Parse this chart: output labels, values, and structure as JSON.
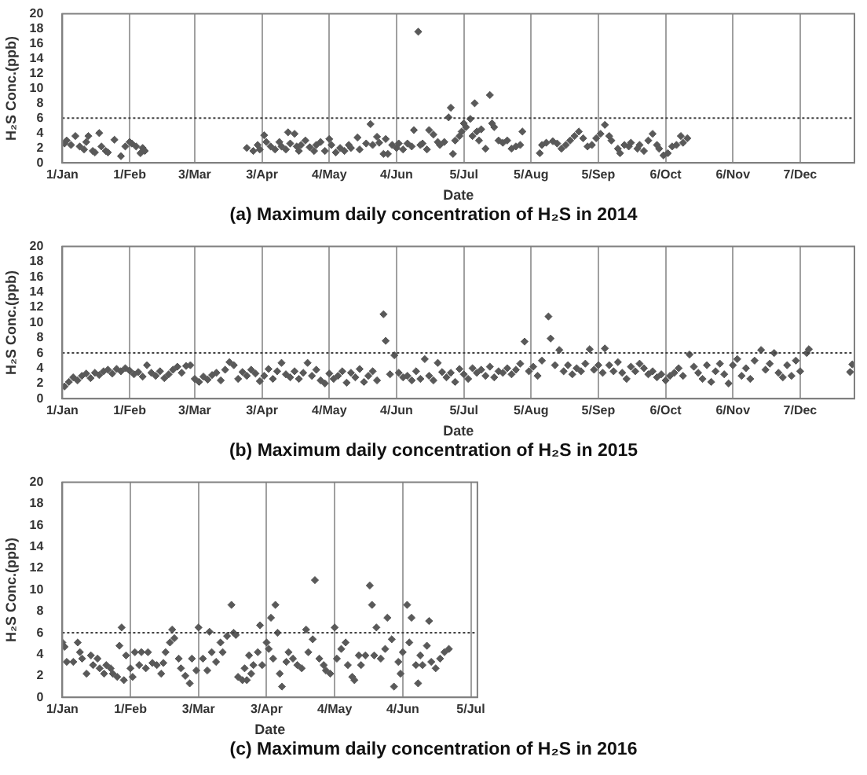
{
  "chart_data": [
    {
      "type": "scatter",
      "title": "(a) Maximum daily concentration of H₂S in 2014",
      "xlabel": "Date",
      "ylabel": "H₂S Conc.(ppb)",
      "color": "#595959",
      "marker": "diamond",
      "grid": "x",
      "xlim": [
        "2014-01-01",
        "2015-01-01"
      ],
      "xticks": [
        {
          "value": "2014-01-01",
          "label": "1/Jan"
        },
        {
          "value": "2014-02-01",
          "label": "1/Feb"
        },
        {
          "value": "2014-03-03",
          "label": "3/Mar"
        },
        {
          "value": "2014-04-03",
          "label": "3/Apr"
        },
        {
          "value": "2014-05-04",
          "label": "4/May"
        },
        {
          "value": "2014-06-04",
          "label": "4/Jun"
        },
        {
          "value": "2014-07-05",
          "label": "5/Jul"
        },
        {
          "value": "2014-08-05",
          "label": "5/Aug"
        },
        {
          "value": "2014-09-05",
          "label": "5/Sep"
        },
        {
          "value": "2014-10-06",
          "label": "6/Oct"
        },
        {
          "value": "2014-11-06",
          "label": "6/Nov"
        },
        {
          "value": "2014-12-07",
          "label": "7/Dec"
        }
      ],
      "ylim": [
        0,
        20
      ],
      "yticks": [
        0,
        2,
        4,
        6,
        8,
        10,
        12,
        14,
        16,
        18,
        20
      ],
      "ref_lines": [
        {
          "axis": "y",
          "value": 6,
          "line_style": "dotted",
          "color": "#404040"
        }
      ],
      "x": [
        "2014-01-02",
        "2014-01-03",
        "2014-01-05",
        "2014-01-07",
        "2014-01-09",
        "2014-01-11",
        "2014-01-12",
        "2014-01-13",
        "2014-01-15",
        "2014-01-16",
        "2014-01-18",
        "2014-01-19",
        "2014-01-21",
        "2014-01-22",
        "2014-01-25",
        "2014-01-28",
        "2014-01-30",
        "2014-02-01",
        "2014-02-02",
        "2014-02-04",
        "2014-02-06",
        "2014-02-07",
        "2014-02-08",
        "2014-03-27",
        "2014-03-30",
        "2014-04-01",
        "2014-04-02",
        "2014-04-04",
        "2014-04-05",
        "2014-04-07",
        "2014-04-09",
        "2014-04-11",
        "2014-04-12",
        "2014-04-14",
        "2014-04-15",
        "2014-04-16",
        "2014-04-18",
        "2014-04-19",
        "2014-04-20",
        "2014-04-21",
        "2014-04-23",
        "2014-04-25",
        "2014-04-27",
        "2014-04-28",
        "2014-04-30",
        "2014-05-02",
        "2014-05-04",
        "2014-05-05",
        "2014-05-07",
        "2014-05-09",
        "2014-05-11",
        "2014-05-13",
        "2014-05-14",
        "2014-05-17",
        "2014-05-18",
        "2014-05-21",
        "2014-05-23",
        "2014-05-24",
        "2014-05-26",
        "2014-05-27",
        "2014-05-29",
        "2014-05-30",
        "2014-05-31",
        "2014-06-02",
        "2014-06-04",
        "2014-06-05",
        "2014-06-07",
        "2014-06-09",
        "2014-06-11",
        "2014-06-12",
        "2014-06-14",
        "2014-06-15",
        "2014-06-16",
        "2014-06-18",
        "2014-06-19",
        "2014-06-21",
        "2014-06-23",
        "2014-06-24",
        "2014-06-26",
        "2014-06-28",
        "2014-06-29",
        "2014-06-30",
        "2014-07-01",
        "2014-07-03",
        "2014-07-04",
        "2014-07-05",
        "2014-07-06",
        "2014-07-08",
        "2014-07-09",
        "2014-07-10",
        "2014-07-11",
        "2014-07-12",
        "2014-07-13",
        "2014-07-15",
        "2014-07-17",
        "2014-07-18",
        "2014-07-19",
        "2014-07-21",
        "2014-07-23",
        "2014-07-25",
        "2014-07-27",
        "2014-07-29",
        "2014-07-31",
        "2014-08-01",
        "2014-08-09",
        "2014-08-10",
        "2014-08-12",
        "2014-08-15",
        "2014-08-17",
        "2014-08-19",
        "2014-08-21",
        "2014-08-23",
        "2014-08-25",
        "2014-08-27",
        "2014-08-29",
        "2014-08-31",
        "2014-09-02",
        "2014-09-04",
        "2014-09-06",
        "2014-09-08",
        "2014-09-10",
        "2014-09-11",
        "2014-09-14",
        "2014-09-15",
        "2014-09-17",
        "2014-09-19",
        "2014-09-20",
        "2014-09-23",
        "2014-09-24",
        "2014-09-26",
        "2014-09-28",
        "2014-09-30",
        "2014-10-02",
        "2014-10-03",
        "2014-10-05",
        "2014-10-07",
        "2014-10-09",
        "2014-10-11",
        "2014-10-13",
        "2014-10-14",
        "2014-10-16"
      ],
      "values": [
        2.6,
        3.0,
        2.4,
        3.6,
        2.2,
        1.8,
        2.8,
        3.6,
        1.6,
        1.4,
        4.0,
        2.2,
        1.6,
        1.4,
        3.1,
        0.9,
        2.2,
        2.8,
        2.6,
        2.2,
        1.3,
        2.0,
        1.6,
        2.0,
        1.6,
        2.4,
        1.8,
        3.7,
        2.8,
        2.2,
        1.8,
        2.8,
        2.2,
        1.8,
        4.1,
        2.6,
        3.9,
        2.2,
        1.6,
        2.4,
        3.0,
        2.1,
        1.6,
        2.4,
        2.8,
        1.6,
        3.2,
        2.4,
        1.4,
        2.0,
        1.6,
        2.4,
        2.0,
        3.4,
        1.8,
        2.6,
        5.2,
        2.4,
        3.5,
        2.7,
        1.2,
        3.2,
        1.2,
        2.4,
        2.0,
        2.6,
        1.8,
        2.6,
        2.2,
        4.4,
        17.6,
        2.4,
        2.6,
        1.8,
        4.4,
        3.8,
        2.8,
        2.4,
        2.8,
        6.1,
        7.4,
        1.2,
        3.0,
        3.6,
        4.2,
        5.3,
        4.8,
        5.9,
        3.6,
        8.0,
        4.2,
        3.0,
        4.5,
        1.9,
        9.1,
        5.3,
        4.8,
        3.0,
        2.7,
        3.0,
        1.9,
        2.2,
        2.4,
        4.2,
        1.3,
        2.4,
        2.7,
        2.9,
        2.6,
        1.9,
        2.4,
        3.0,
        3.6,
        4.2,
        3.3,
        2.2,
        2.4,
        3.3,
        3.9,
        5.1,
        3.6,
        3.0,
        1.9,
        1.3,
        2.4,
        2.2,
        2.7,
        1.9,
        2.4,
        1.6,
        3.0,
        3.9,
        2.4,
        1.9,
        1.0,
        1.3,
        2.2,
        2.4,
        3.6,
        2.7,
        3.3
      ]
    },
    {
      "type": "scatter",
      "title": "(b) Maximum daily concentration of H₂S in 2015",
      "xlabel": "Date",
      "ylabel": "H₂S Conc.(ppb)",
      "color": "#595959",
      "marker": "diamond",
      "grid": "x",
      "xlim": [
        "2015-01-01",
        "2016-01-01"
      ],
      "xticks": [
        {
          "value": "2015-01-01",
          "label": "1/Jan"
        },
        {
          "value": "2015-02-01",
          "label": "1/Feb"
        },
        {
          "value": "2015-03-03",
          "label": "3/Mar"
        },
        {
          "value": "2015-04-03",
          "label": "3/Apr"
        },
        {
          "value": "2015-05-04",
          "label": "4/May"
        },
        {
          "value": "2015-06-04",
          "label": "4/Jun"
        },
        {
          "value": "2015-07-05",
          "label": "5/Jul"
        },
        {
          "value": "2015-08-05",
          "label": "5/Aug"
        },
        {
          "value": "2015-09-05",
          "label": "5/Sep"
        },
        {
          "value": "2015-10-06",
          "label": "6/Oct"
        },
        {
          "value": "2015-11-06",
          "label": "6/Nov"
        },
        {
          "value": "2015-12-07",
          "label": "7/Dec"
        }
      ],
      "ylim": [
        0,
        20
      ],
      "yticks": [
        0,
        2,
        4,
        6,
        8,
        10,
        12,
        14,
        16,
        18,
        20
      ],
      "ref_lines": [
        {
          "axis": "y",
          "value": 6,
          "line_style": "dotted",
          "color": "#404040"
        }
      ],
      "x": [
        "2015-01-02",
        "2015-01-04",
        "2015-01-06",
        "2015-01-08",
        "2015-01-10",
        "2015-01-12",
        "2015-01-14",
        "2015-01-16",
        "2015-01-18",
        "2015-01-20",
        "2015-01-22",
        "2015-01-24",
        "2015-01-26",
        "2015-01-28",
        "2015-01-30",
        "2015-02-01",
        "2015-02-03",
        "2015-02-05",
        "2015-02-07",
        "2015-02-09",
        "2015-02-11",
        "2015-02-13",
        "2015-02-15",
        "2015-02-17",
        "2015-02-19",
        "2015-02-21",
        "2015-02-23",
        "2015-02-25",
        "2015-02-27",
        "2015-03-01",
        "2015-03-03",
        "2015-03-05",
        "2015-03-07",
        "2015-03-09",
        "2015-03-11",
        "2015-03-13",
        "2015-03-15",
        "2015-03-17",
        "2015-03-19",
        "2015-03-21",
        "2015-03-23",
        "2015-03-25",
        "2015-03-27",
        "2015-03-29",
        "2015-03-31",
        "2015-04-02",
        "2015-04-04",
        "2015-04-06",
        "2015-04-08",
        "2015-04-10",
        "2015-04-12",
        "2015-04-14",
        "2015-04-16",
        "2015-04-18",
        "2015-04-20",
        "2015-04-22",
        "2015-04-24",
        "2015-04-26",
        "2015-04-28",
        "2015-04-30",
        "2015-05-02",
        "2015-05-04",
        "2015-05-06",
        "2015-05-08",
        "2015-05-10",
        "2015-05-12",
        "2015-05-14",
        "2015-05-16",
        "2015-05-18",
        "2015-05-20",
        "2015-05-22",
        "2015-05-24",
        "2015-05-26",
        "2015-05-29",
        "2015-05-30",
        "2015-06-01",
        "2015-06-03",
        "2015-06-05",
        "2015-06-07",
        "2015-06-09",
        "2015-06-11",
        "2015-06-13",
        "2015-06-15",
        "2015-06-17",
        "2015-06-19",
        "2015-06-21",
        "2015-06-23",
        "2015-06-25",
        "2015-06-27",
        "2015-06-29",
        "2015-07-01",
        "2015-07-03",
        "2015-07-05",
        "2015-07-07",
        "2015-07-09",
        "2015-07-11",
        "2015-07-13",
        "2015-07-15",
        "2015-07-17",
        "2015-07-19",
        "2015-07-21",
        "2015-07-23",
        "2015-07-25",
        "2015-07-27",
        "2015-07-29",
        "2015-07-31",
        "2015-08-02",
        "2015-08-04",
        "2015-08-06",
        "2015-08-08",
        "2015-08-10",
        "2015-08-13",
        "2015-08-14",
        "2015-08-16",
        "2015-08-18",
        "2015-08-20",
        "2015-08-22",
        "2015-08-24",
        "2015-08-26",
        "2015-08-28",
        "2015-08-30",
        "2015-09-01",
        "2015-09-03",
        "2015-09-05",
        "2015-09-07",
        "2015-09-08",
        "2015-09-10",
        "2015-09-12",
        "2015-09-14",
        "2015-09-16",
        "2015-09-18",
        "2015-09-20",
        "2015-09-22",
        "2015-09-24",
        "2015-09-26",
        "2015-09-28",
        "2015-09-30",
        "2015-10-02",
        "2015-10-04",
        "2015-10-06",
        "2015-10-08",
        "2015-10-10",
        "2015-10-12",
        "2015-10-14",
        "2015-10-17",
        "2015-10-19",
        "2015-10-21",
        "2015-10-23",
        "2015-10-25",
        "2015-10-27",
        "2015-10-29",
        "2015-10-31",
        "2015-11-02",
        "2015-11-04",
        "2015-11-06",
        "2015-11-08",
        "2015-11-10",
        "2015-11-12",
        "2015-11-14",
        "2015-11-16",
        "2015-11-19",
        "2015-11-21",
        "2015-11-23",
        "2015-11-25",
        "2015-11-27",
        "2015-11-29",
        "2015-12-01",
        "2015-12-03",
        "2015-12-05",
        "2015-12-07",
        "2015-12-10",
        "2015-12-11",
        "2015-12-30",
        "2015-12-31"
      ],
      "values": [
        1.6,
        2.2,
        2.8,
        2.4,
        3.0,
        3.3,
        2.7,
        3.4,
        3.1,
        3.6,
        3.8,
        3.3,
        3.9,
        3.6,
        4.0,
        3.7,
        3.2,
        3.5,
        2.9,
        4.4,
        3.4,
        3.0,
        3.6,
        2.7,
        3.2,
        3.8,
        4.2,
        3.4,
        4.3,
        4.4,
        2.6,
        2.2,
        2.9,
        2.5,
        3.1,
        3.4,
        2.4,
        3.8,
        4.8,
        4.4,
        2.6,
        3.5,
        3.0,
        3.8,
        3.3,
        2.3,
        3.0,
        3.9,
        2.6,
        3.6,
        4.7,
        3.2,
        2.8,
        3.6,
        2.6,
        3.4,
        4.7,
        3.0,
        3.8,
        2.4,
        2.0,
        3.3,
        2.6,
        3.0,
        3.6,
        2.1,
        3.4,
        2.8,
        3.9,
        2.2,
        3.0,
        3.6,
        2.4,
        11.1,
        7.6,
        3.2,
        5.7,
        3.4,
        2.8,
        3.0,
        2.4,
        3.6,
        2.6,
        5.2,
        3.0,
        2.4,
        4.7,
        3.5,
        2.8,
        3.4,
        2.2,
        3.9,
        3.2,
        2.6,
        4.0,
        3.4,
        3.8,
        3.0,
        4.2,
        2.8,
        3.6,
        3.4,
        4.0,
        3.2,
        3.8,
        4.6,
        7.5,
        3.6,
        4.2,
        3.0,
        5.0,
        10.8,
        7.9,
        4.4,
        6.4,
        3.6,
        4.4,
        3.2,
        4.0,
        3.6,
        4.6,
        6.5,
        3.8,
        4.4,
        3.4,
        6.6,
        4.4,
        3.6,
        4.8,
        3.4,
        2.6,
        4.2,
        3.6,
        4.6,
        4.0,
        3.2,
        3.6,
        2.8,
        3.2,
        2.4,
        3.0,
        3.4,
        4.0,
        3.0,
        5.8,
        4.2,
        3.4,
        2.6,
        4.4,
        2.2,
        3.6,
        4.6,
        3.2,
        2.0,
        4.4,
        5.2,
        3.0,
        4.0,
        2.6,
        5.0,
        6.4,
        3.8,
        4.6,
        6.0,
        3.4,
        2.8,
        4.4,
        3.0,
        5.0,
        3.6,
        6.0,
        6.5,
        3.5,
        4.5
      ]
    },
    {
      "type": "scatter",
      "title": "(c) Maximum daily concentration of H₂S in 2016",
      "xlabel": "Date",
      "ylabel": "H₂S Conc.(ppb)",
      "color": "#595959",
      "marker": "diamond",
      "grid": "x",
      "xlim": [
        "2016-01-01",
        "2016-07-08"
      ],
      "xticks": [
        {
          "value": "2016-01-01",
          "label": "1/Jan"
        },
        {
          "value": "2016-02-01",
          "label": "1/Feb"
        },
        {
          "value": "2016-03-03",
          "label": "3/Mar"
        },
        {
          "value": "2016-04-03",
          "label": "3/Apr"
        },
        {
          "value": "2016-05-04",
          "label": "4/May"
        },
        {
          "value": "2016-06-04",
          "label": "4/Jun"
        },
        {
          "value": "2016-07-05",
          "label": "5/Jul"
        }
      ],
      "ylim": [
        0,
        20
      ],
      "yticks": [
        0,
        2,
        4,
        6,
        8,
        10,
        12,
        14,
        16,
        18,
        20
      ],
      "ref_lines": [
        {
          "axis": "y",
          "value": 6,
          "line_style": "dotted",
          "color": "#404040"
        }
      ],
      "x": [
        "2016-01-01",
        "2016-01-02",
        "2016-01-03",
        "2016-01-06",
        "2016-01-08",
        "2016-01-09",
        "2016-01-10",
        "2016-01-12",
        "2016-01-14",
        "2016-01-15",
        "2016-01-17",
        "2016-01-18",
        "2016-01-20",
        "2016-01-21",
        "2016-01-23",
        "2016-01-24",
        "2016-01-26",
        "2016-01-27",
        "2016-01-28",
        "2016-01-29",
        "2016-01-30",
        "2016-02-01",
        "2016-02-02",
        "2016-02-03",
        "2016-02-05",
        "2016-02-06",
        "2016-02-08",
        "2016-02-09",
        "2016-02-11",
        "2016-02-13",
        "2016-02-15",
        "2016-02-16",
        "2016-02-17",
        "2016-02-19",
        "2016-02-20",
        "2016-02-21",
        "2016-02-23",
        "2016-02-24",
        "2016-02-26",
        "2016-02-28",
        "2016-02-29",
        "2016-03-02",
        "2016-03-03",
        "2016-03-05",
        "2016-03-07",
        "2016-03-08",
        "2016-03-09",
        "2016-03-11",
        "2016-03-13",
        "2016-03-14",
        "2016-03-16",
        "2016-03-18",
        "2016-03-19",
        "2016-03-20",
        "2016-03-21",
        "2016-03-23",
        "2016-03-24",
        "2016-03-25",
        "2016-03-26",
        "2016-03-27",
        "2016-03-28",
        "2016-03-30",
        "2016-03-31",
        "2016-04-01",
        "2016-04-03",
        "2016-04-04",
        "2016-04-05",
        "2016-04-06",
        "2016-04-07",
        "2016-04-08",
        "2016-04-09",
        "2016-04-10",
        "2016-04-12",
        "2016-04-13",
        "2016-04-15",
        "2016-04-17",
        "2016-04-19",
        "2016-04-21",
        "2016-04-22",
        "2016-04-24",
        "2016-04-25",
        "2016-04-27",
        "2016-04-29",
        "2016-04-30",
        "2016-05-02",
        "2016-05-04",
        "2016-05-05",
        "2016-05-07",
        "2016-05-09",
        "2016-05-10",
        "2016-05-12",
        "2016-05-13",
        "2016-05-15",
        "2016-05-16",
        "2016-05-18",
        "2016-05-20",
        "2016-05-21",
        "2016-05-22",
        "2016-05-23",
        "2016-05-25",
        "2016-05-27",
        "2016-05-28",
        "2016-05-30",
        "2016-05-31",
        "2016-06-02",
        "2016-06-03",
        "2016-06-04",
        "2016-06-06",
        "2016-06-07",
        "2016-06-08",
        "2016-06-10",
        "2016-06-11",
        "2016-06-12",
        "2016-06-13",
        "2016-06-15",
        "2016-06-16",
        "2016-06-17",
        "2016-06-19",
        "2016-06-21",
        "2016-06-23",
        "2016-06-25"
      ],
      "values": [
        5.1,
        4.7,
        3.3,
        3.3,
        5.1,
        4.2,
        3.6,
        2.2,
        3.9,
        3.0,
        3.6,
        2.7,
        2.2,
        3.0,
        2.7,
        2.2,
        1.9,
        4.8,
        6.5,
        1.6,
        3.9,
        2.7,
        1.9,
        4.2,
        3.0,
        4.2,
        2.7,
        4.2,
        3.2,
        3.0,
        2.2,
        3.2,
        4.2,
        5.1,
        6.3,
        5.5,
        3.6,
        2.7,
        2.0,
        1.3,
        3.6,
        2.5,
        6.5,
        3.6,
        2.5,
        6.1,
        4.2,
        3.3,
        5.1,
        4.2,
        5.7,
        8.6,
        6.0,
        5.8,
        1.9,
        1.6,
        2.7,
        1.6,
        3.9,
        2.2,
        3.0,
        4.2,
        6.7,
        3.0,
        5.1,
        4.5,
        7.4,
        3.6,
        8.6,
        6.0,
        2.2,
        1.0,
        3.3,
        4.2,
        3.6,
        3.0,
        2.7,
        6.3,
        4.2,
        5.4,
        10.9,
        3.6,
        3.0,
        2.5,
        2.2,
        6.5,
        3.6,
        4.5,
        5.1,
        3.0,
        1.9,
        1.6,
        3.9,
        3.0,
        3.9,
        10.4,
        8.6,
        3.9,
        6.5,
        3.6,
        4.5,
        7.4,
        5.4,
        1.0,
        3.3,
        2.2,
        4.2,
        8.6,
        5.1,
        7.4,
        3.0,
        1.3,
        3.9,
        3.0,
        4.8,
        7.1,
        3.3,
        2.7,
        3.6,
        4.2,
        4.5
      ]
    }
  ]
}
